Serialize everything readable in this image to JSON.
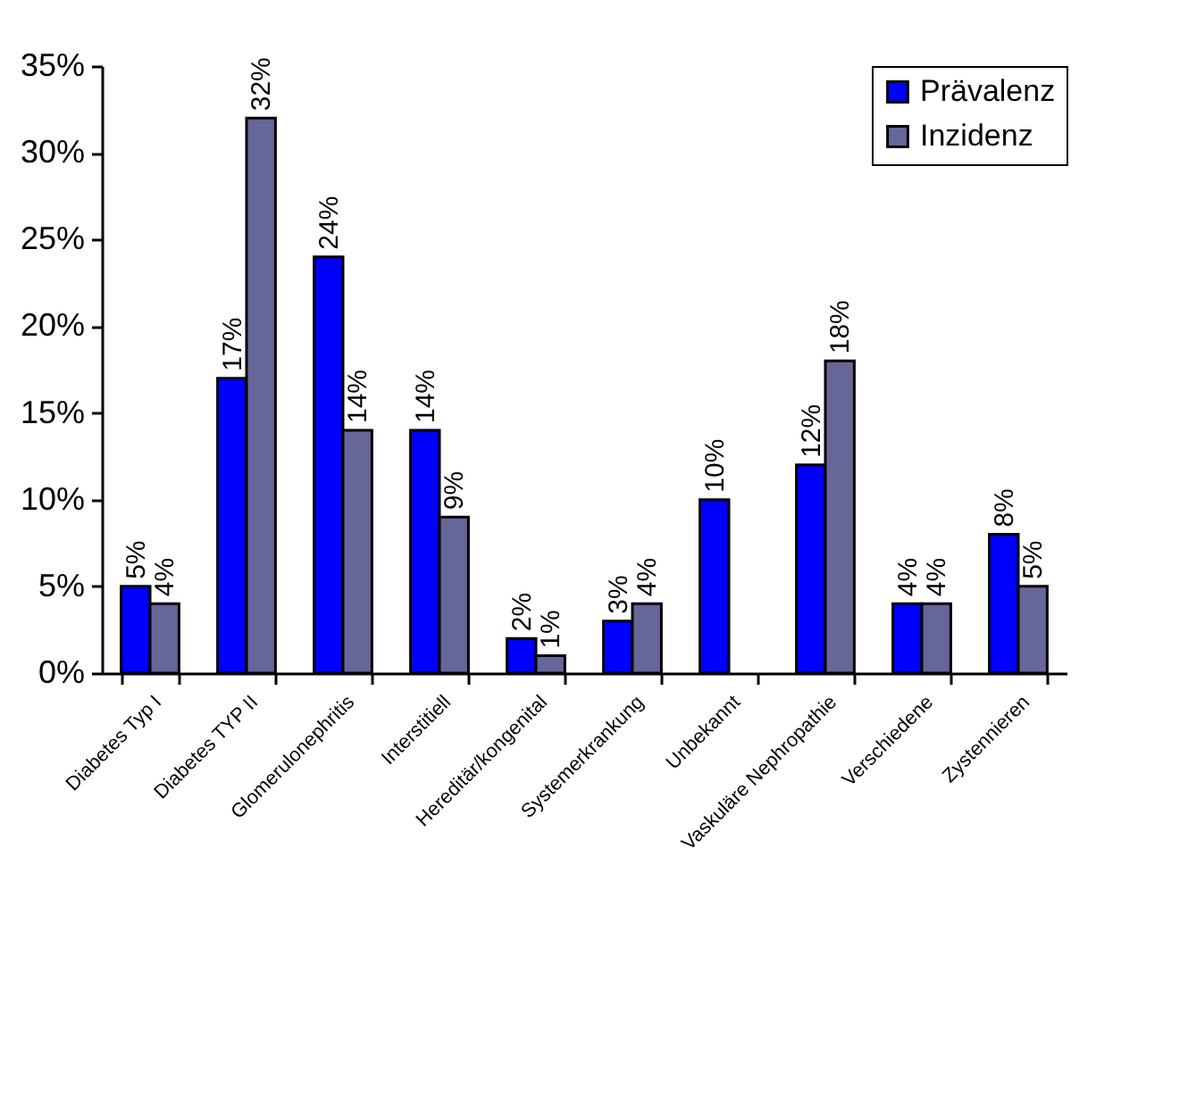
{
  "chart_data": {
    "type": "bar",
    "categories": [
      "Diabetes Typ I",
      "Diabetes TYP II",
      "Glomerulonephritis",
      "Interstitiell",
      "Hereditär/kongenital",
      "Systemerkrankung",
      "Unbekannt",
      "Vaskuläre Nephropathie",
      "Verschiedene",
      "Zystennieren"
    ],
    "series": [
      {
        "name": "Prävalenz",
        "color": "#0000ff",
        "values": [
          5,
          17,
          24,
          14,
          2,
          3,
          10,
          12,
          4,
          8
        ],
        "value_labels": [
          "5%",
          "17%",
          "24%",
          "14%",
          "2%",
          "3%",
          "10%",
          "12%",
          "4%",
          "8%"
        ]
      },
      {
        "name": "Inzidenz",
        "color": "#666699",
        "values": [
          4,
          32,
          14,
          9,
          1,
          4,
          null,
          18,
          4,
          5
        ],
        "value_labels": [
          "4%",
          "32%",
          "14%",
          "9%",
          "1%",
          "4%",
          null,
          "18%",
          "4%",
          "5%"
        ]
      }
    ],
    "ylim": [
      0,
      35
    ],
    "yticks": [
      {
        "value": 0,
        "label": "0%"
      },
      {
        "value": 5,
        "label": "5%"
      },
      {
        "value": 10,
        "label": "10%"
      },
      {
        "value": 15,
        "label": "15%"
      },
      {
        "value": 20,
        "label": "20%"
      },
      {
        "value": 25,
        "label": "25%"
      },
      {
        "value": 30,
        "label": "30%"
      },
      {
        "value": 35,
        "label": "35%"
      }
    ],
    "grid": false,
    "legend": "top right"
  }
}
